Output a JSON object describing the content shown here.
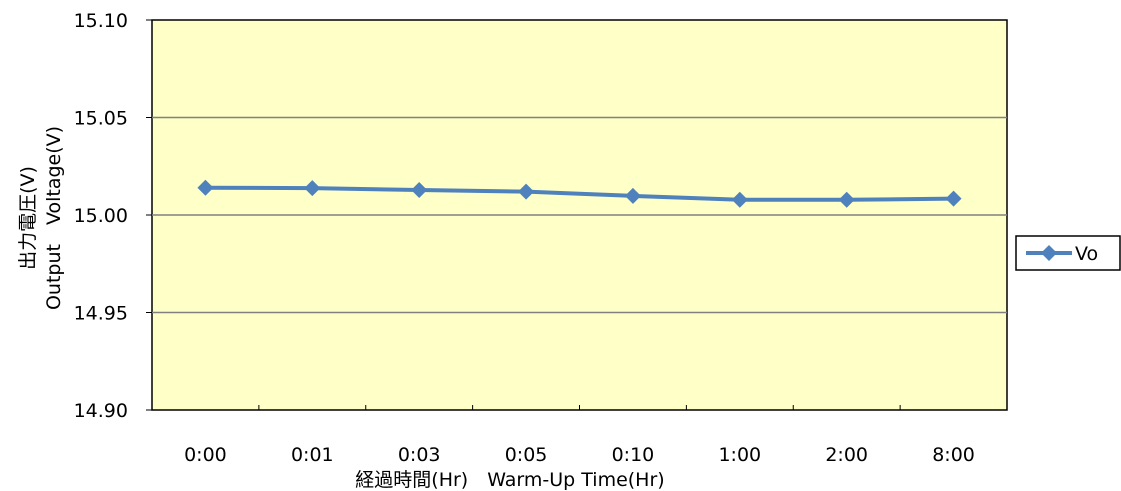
{
  "chart_data": {
    "type": "line",
    "title": "",
    "categories": [
      "0:00",
      "0:01",
      "0:03",
      "0:05",
      "0:10",
      "1:00",
      "2:00",
      "8:00"
    ],
    "series": [
      {
        "name": "Vo",
        "values": [
          15.014,
          15.0138,
          15.0128,
          15.012,
          15.0098,
          15.0078,
          15.0078,
          15.0084
        ],
        "color": "#4f81bd",
        "marker": "diamond"
      }
    ],
    "xlabel": "経過時間(Hr)　Warm-Up Time(Hr)",
    "ylabel_line1": "出力電圧(V)",
    "ylabel_line2": "Output　Voltage(V)",
    "ylim": [
      14.9,
      15.1
    ],
    "yticks": [
      "14.90",
      "14.95",
      "15.00",
      "15.05",
      "15.10"
    ],
    "grid": true,
    "plot_background": "#ffffc8",
    "legend_position": "right"
  }
}
